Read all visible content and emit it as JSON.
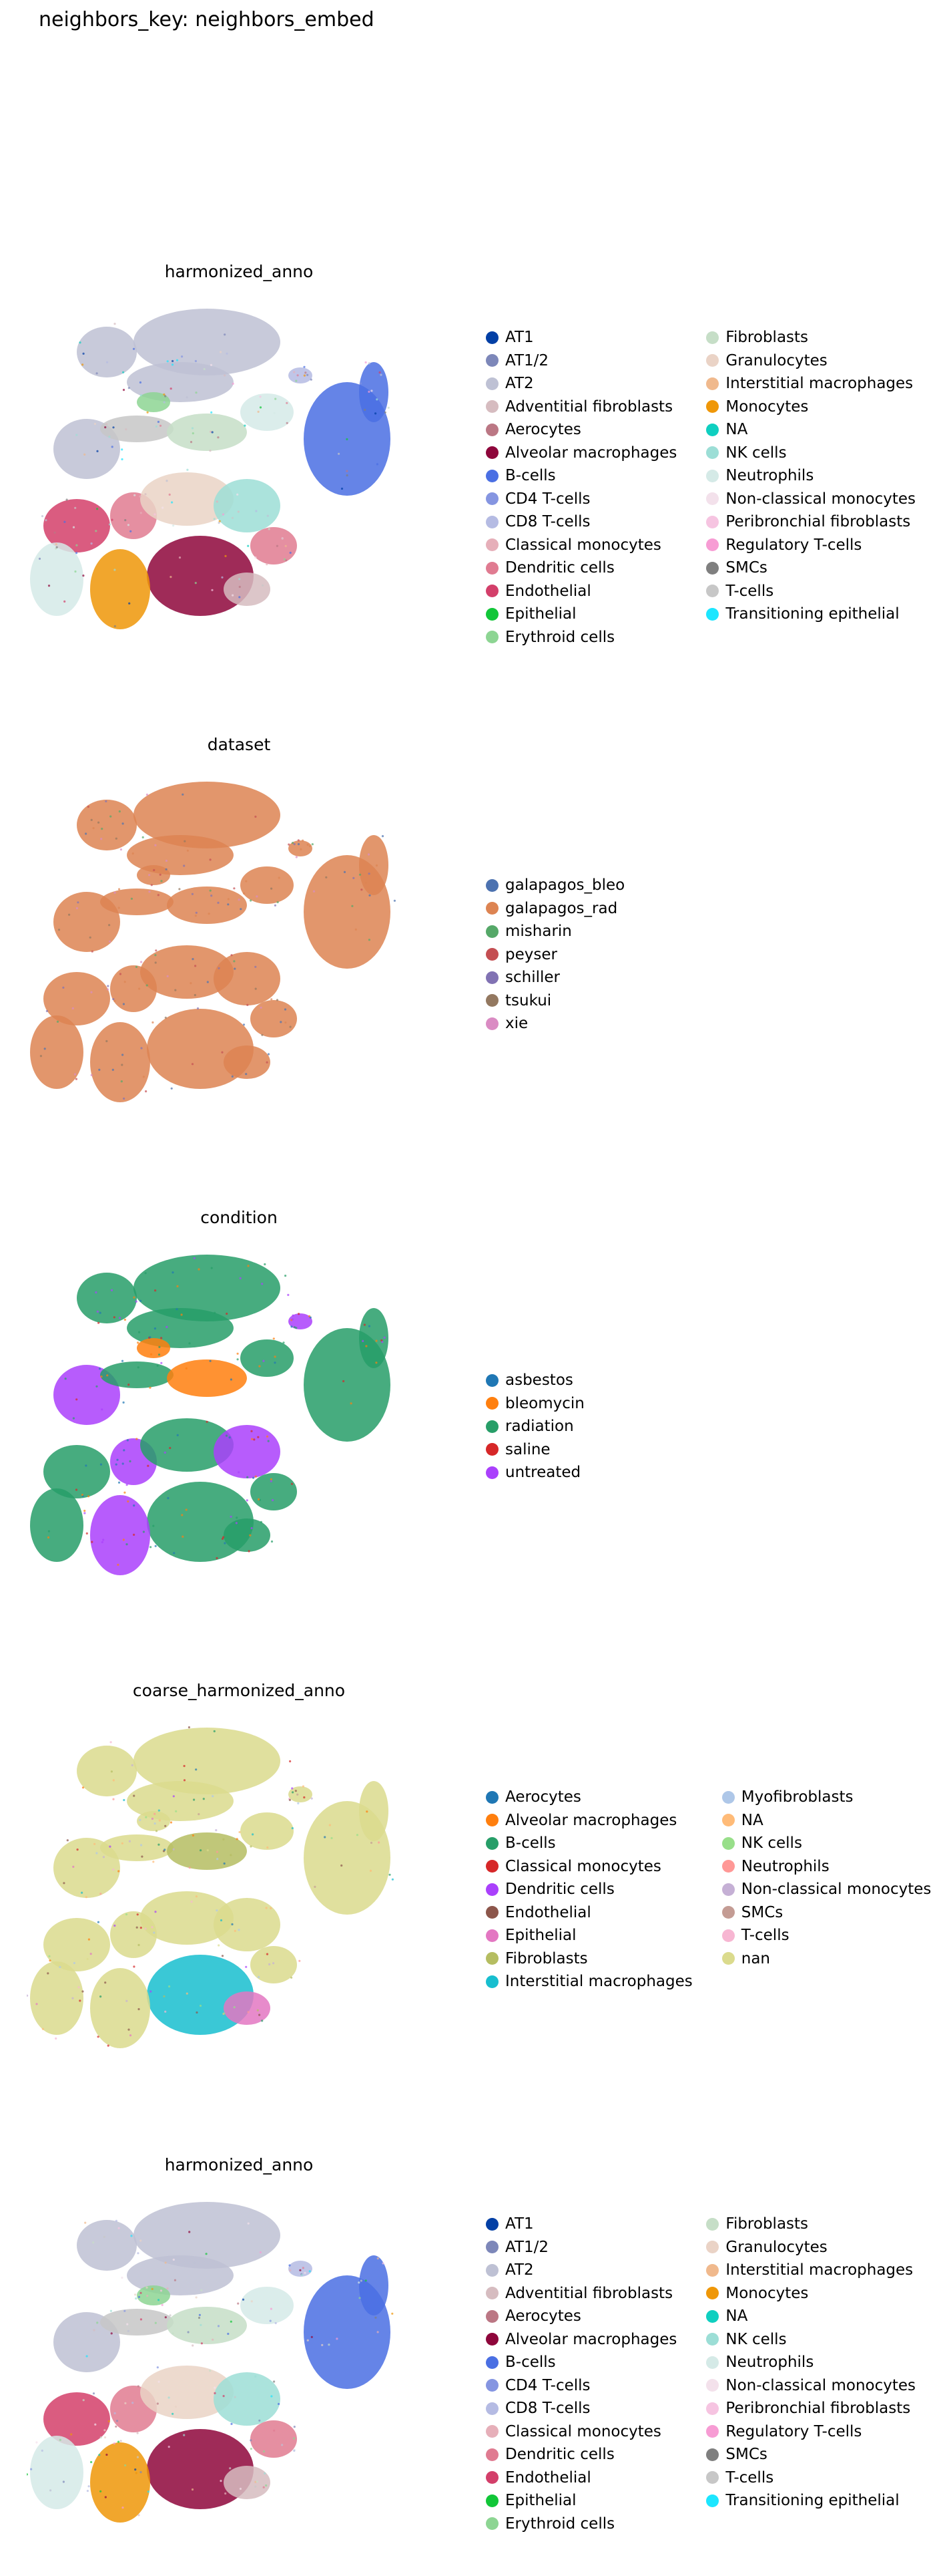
{
  "suptitle": "neighbors_key: neighbors_embed",
  "chart_data": [
    {
      "type": "scatter",
      "title": "harmonized_anno",
      "legend_placement": "right",
      "base_color": "#ececf2",
      "categories": [
        {
          "name": "AT1",
          "color": "#023fa5"
        },
        {
          "name": "AT1/2",
          "color": "#7d87b9"
        },
        {
          "name": "AT2",
          "color": "#bec1d4"
        },
        {
          "name": "Adventitial fibroblasts",
          "color": "#d6bcc0"
        },
        {
          "name": "Aerocytes",
          "color": "#bb7784"
        },
        {
          "name": "Alveolar macrophages",
          "color": "#8e063b"
        },
        {
          "name": "B-cells",
          "color": "#4a6fe3"
        },
        {
          "name": "CD4 T-cells",
          "color": "#8595e1"
        },
        {
          "name": "CD8 T-cells",
          "color": "#b5bbe3"
        },
        {
          "name": "Classical monocytes",
          "color": "#e6afb9"
        },
        {
          "name": "Dendritic cells",
          "color": "#e07b91"
        },
        {
          "name": "Endothelial",
          "color": "#d33f6a"
        },
        {
          "name": "Epithelial",
          "color": "#11c638"
        },
        {
          "name": "Erythroid cells",
          "color": "#8dd593"
        },
        {
          "name": "Fibroblasts",
          "color": "#c6dec7"
        },
        {
          "name": "Granulocytes",
          "color": "#ead3c6"
        },
        {
          "name": "Interstitial macrophages",
          "color": "#f0b98d"
        },
        {
          "name": "Monocytes",
          "color": "#ef9708"
        },
        {
          "name": "NA",
          "color": "#0fcfc0"
        },
        {
          "name": "NK cells",
          "color": "#9cded6"
        },
        {
          "name": "Neutrophils",
          "color": "#d5eae7"
        },
        {
          "name": "Non-classical monocytes",
          "color": "#f3e1eb"
        },
        {
          "name": "Peribronchial fibroblasts",
          "color": "#f6c4e1"
        },
        {
          "name": "Regulatory T-cells",
          "color": "#f79cd4"
        },
        {
          "name": "SMCs",
          "color": "#7f7f7f"
        },
        {
          "name": "T-cells",
          "color": "#c7c7c7"
        },
        {
          "name": "Transitioning epithelial",
          "color": "#1ce6ff"
        }
      ]
    },
    {
      "type": "scatter",
      "title": "dataset",
      "legend_placement": "right",
      "base_color": "#f2d9c8",
      "categories": [
        {
          "name": "galapagos_bleo",
          "color": "#4c72b0"
        },
        {
          "name": "galapagos_rad",
          "color": "#dd8452"
        },
        {
          "name": "misharin",
          "color": "#55a868"
        },
        {
          "name": "peyser",
          "color": "#c44e52"
        },
        {
          "name": "schiller",
          "color": "#8172b3"
        },
        {
          "name": "tsukui",
          "color": "#937860"
        },
        {
          "name": "xie",
          "color": "#da8bc3"
        }
      ]
    },
    {
      "type": "scatter",
      "title": "condition",
      "legend_placement": "right",
      "base_color": "#d8e6e0",
      "categories": [
        {
          "name": "asbestos",
          "color": "#1f77b4"
        },
        {
          "name": "bleomycin",
          "color": "#ff7f0e"
        },
        {
          "name": "radiation",
          "color": "#279e68"
        },
        {
          "name": "saline",
          "color": "#d62728"
        },
        {
          "name": "untreated",
          "color": "#aa40fc"
        }
      ]
    },
    {
      "type": "scatter",
      "title": "coarse_harmonized_anno",
      "legend_placement": "right",
      "base_color": "#efefd2",
      "categories": [
        {
          "name": "Aerocytes",
          "color": "#1f77b4"
        },
        {
          "name": "Alveolar macrophages",
          "color": "#ff7f0e"
        },
        {
          "name": "B-cells",
          "color": "#279e68"
        },
        {
          "name": "Classical monocytes",
          "color": "#d62728"
        },
        {
          "name": "Dendritic cells",
          "color": "#aa40fc"
        },
        {
          "name": "Endothelial",
          "color": "#8c564b"
        },
        {
          "name": "Epithelial",
          "color": "#e377c2"
        },
        {
          "name": "Fibroblasts",
          "color": "#b5bd61"
        },
        {
          "name": "Interstitial macrophages",
          "color": "#17becf"
        },
        {
          "name": "Myofibroblasts",
          "color": "#aec7e8"
        },
        {
          "name": "NA",
          "color": "#ffbb78"
        },
        {
          "name": "NK cells",
          "color": "#98df8a"
        },
        {
          "name": "Neutrophils",
          "color": "#ff9896"
        },
        {
          "name": "Non-classical monocytes",
          "color": "#c5b0d5"
        },
        {
          "name": "SMCs",
          "color": "#c49c94"
        },
        {
          "name": "T-cells",
          "color": "#f7b6d2"
        },
        {
          "name": "nan",
          "color": "#dbdb8d"
        }
      ]
    },
    {
      "type": "scatter",
      "title": "harmonized_anno",
      "legend_placement": "right",
      "base_color": "#ececf2",
      "categories": [
        {
          "name": "AT1",
          "color": "#023fa5"
        },
        {
          "name": "AT1/2",
          "color": "#7d87b9"
        },
        {
          "name": "AT2",
          "color": "#bec1d4"
        },
        {
          "name": "Adventitial fibroblasts",
          "color": "#d6bcc0"
        },
        {
          "name": "Aerocytes",
          "color": "#bb7784"
        },
        {
          "name": "Alveolar macrophages",
          "color": "#8e063b"
        },
        {
          "name": "B-cells",
          "color": "#4a6fe3"
        },
        {
          "name": "CD4 T-cells",
          "color": "#8595e1"
        },
        {
          "name": "CD8 T-cells",
          "color": "#b5bbe3"
        },
        {
          "name": "Classical monocytes",
          "color": "#e6afb9"
        },
        {
          "name": "Dendritic cells",
          "color": "#e07b91"
        },
        {
          "name": "Endothelial",
          "color": "#d33f6a"
        },
        {
          "name": "Epithelial",
          "color": "#11c638"
        },
        {
          "name": "Erythroid cells",
          "color": "#8dd593"
        },
        {
          "name": "Fibroblasts",
          "color": "#c6dec7"
        },
        {
          "name": "Granulocytes",
          "color": "#ead3c6"
        },
        {
          "name": "Interstitial macrophages",
          "color": "#f0b98d"
        },
        {
          "name": "Monocytes",
          "color": "#ef9708"
        },
        {
          "name": "NA",
          "color": "#0fcfc0"
        },
        {
          "name": "NK cells",
          "color": "#9cded6"
        },
        {
          "name": "Neutrophils",
          "color": "#d5eae7"
        },
        {
          "name": "Non-classical monocytes",
          "color": "#f3e1eb"
        },
        {
          "name": "Peribronchial fibroblasts",
          "color": "#f6c4e1"
        },
        {
          "name": "Regulatory T-cells",
          "color": "#f79cd4"
        },
        {
          "name": "SMCs",
          "color": "#7f7f7f"
        },
        {
          "name": "T-cells",
          "color": "#c7c7c7"
        },
        {
          "name": "Transitioning epithelial",
          "color": "#1ce6ff"
        }
      ]
    }
  ]
}
